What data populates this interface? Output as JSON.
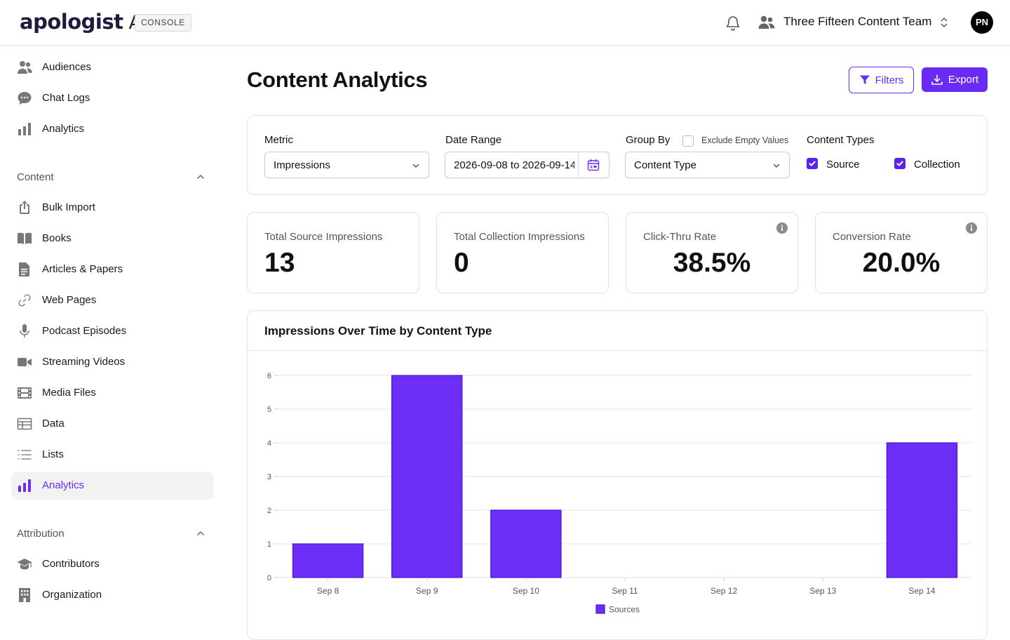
{
  "header": {
    "logo_text": "apologist",
    "logo_suffix": "AI",
    "badge": "CONSOLE",
    "team_name": "Three Fifteen Content Team",
    "avatar_initials": "PN"
  },
  "sidebar": {
    "top_items": [
      {
        "label": "Audiences",
        "icon": "audience-icon"
      },
      {
        "label": "Chat Logs",
        "icon": "chat-icon"
      },
      {
        "label": "Analytics",
        "icon": "bar-chart-icon"
      }
    ],
    "content_section": "Content",
    "content_items": [
      {
        "label": "Bulk Import",
        "icon": "upload-icon"
      },
      {
        "label": "Books",
        "icon": "book-icon"
      },
      {
        "label": "Articles & Papers",
        "icon": "document-icon"
      },
      {
        "label": "Web Pages",
        "icon": "link-icon"
      },
      {
        "label": "Podcast Episodes",
        "icon": "microphone-icon"
      },
      {
        "label": "Streaming Videos",
        "icon": "video-camera-icon"
      },
      {
        "label": "Media Files",
        "icon": "film-icon"
      },
      {
        "label": "Data",
        "icon": "table-icon"
      },
      {
        "label": "Lists",
        "icon": "list-icon"
      },
      {
        "label": "Analytics",
        "icon": "bar-chart-icon",
        "active": true
      }
    ],
    "attribution_section": "Attribution",
    "attribution_items": [
      {
        "label": "Contributors",
        "icon": "graduation-cap-icon"
      },
      {
        "label": "Organization",
        "icon": "building-icon"
      }
    ]
  },
  "main": {
    "title": "Content Analytics",
    "filters_button": "Filters",
    "export_button": "Export",
    "filters": {
      "metric_label": "Metric",
      "metric_value": "Impressions",
      "date_label": "Date Range",
      "date_value": "2026-09-08 to 2026-09-14",
      "group_label": "Group By",
      "exclude_empty_label": "Exclude Empty Values",
      "exclude_empty_checked": false,
      "group_value": "Content Type",
      "content_types_label": "Content Types",
      "source_label": "Source",
      "source_checked": true,
      "collection_label": "Collection",
      "collection_checked": true
    },
    "stats": [
      {
        "label": "Total Source Impressions",
        "value": "13"
      },
      {
        "label": "Total Collection Impressions",
        "value": "0"
      },
      {
        "label": "Click-Thru Rate",
        "value": "38.5%"
      },
      {
        "label": "Conversion Rate",
        "value": "20.0%"
      }
    ],
    "chart_title": "Impressions Over Time by Content Type"
  },
  "colors": {
    "accent": "#6a2cf5",
    "bar_fill": "#6d2ff7",
    "bar_stroke": "#4a12d6"
  },
  "chart_data": {
    "type": "bar",
    "title": "Impressions Over Time by Content Type",
    "categories": [
      "Sep 8",
      "Sep 9",
      "Sep 10",
      "Sep 11",
      "Sep 12",
      "Sep 13",
      "Sep 14"
    ],
    "series": [
      {
        "name": "Sources",
        "values": [
          1,
          6,
          2,
          0,
          0,
          0,
          4
        ]
      }
    ],
    "ylim": [
      0,
      6
    ],
    "yticks": [
      0,
      1,
      2,
      3,
      4,
      5,
      6
    ],
    "grid": true,
    "legend": "bottom-center"
  }
}
